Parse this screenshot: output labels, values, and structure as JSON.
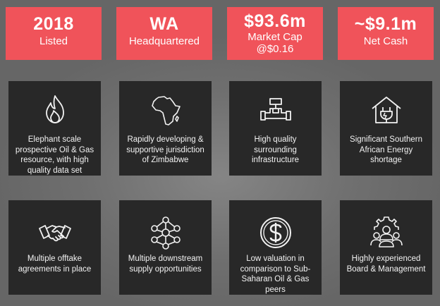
{
  "colors": {
    "accent": "#f0535a",
    "card": "#282828",
    "background": "#6b6b6b"
  },
  "stats": [
    {
      "value": "2018",
      "label": "Listed"
    },
    {
      "value": "WA",
      "label": "Headquartered"
    },
    {
      "value": "$93.6m",
      "label": "Market Cap\n@$0.16"
    },
    {
      "value": "~$9.1m",
      "label": "Net Cash"
    }
  ],
  "cards": [
    {
      "icon": "flame-icon",
      "text": "Elephant scale prospective Oil & Gas resource, with high quality data set"
    },
    {
      "icon": "africa-map-icon",
      "text": "Rapidly developing & supportive jurisdiction of Zimbabwe"
    },
    {
      "icon": "pipeline-icon",
      "text": "High quality surrounding infrastructure"
    },
    {
      "icon": "energy-house-icon",
      "text": "Significant Southern African Energy shortage"
    },
    {
      "icon": "handshake-icon",
      "text": "Multiple offtake agreements in place"
    },
    {
      "icon": "network-icon",
      "text": "Multiple downstream supply opportunities"
    },
    {
      "icon": "dollar-coin-icon",
      "text": "Low valuation in comparison to Sub-Saharan Oil & Gas peers"
    },
    {
      "icon": "team-gear-icon",
      "text": "Highly experienced Board & Management"
    }
  ]
}
